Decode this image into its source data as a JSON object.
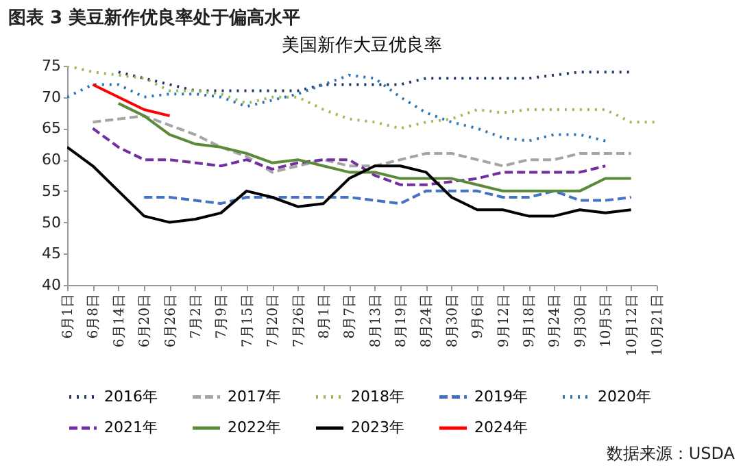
{
  "chart_data": {
    "type": "line",
    "title": "图表 3 美豆新作优良率处于偏高水平",
    "subtitle": "美国新作大豆优良率",
    "categories": [
      "6月1日",
      "6月8日",
      "6月14日",
      "6月20日",
      "6月26日",
      "7月2日",
      "7月9日",
      "7月15日",
      "7月20日",
      "7月26日",
      "8月1日",
      "8月7日",
      "8月13日",
      "8月19日",
      "8月24日",
      "8月30日",
      "9月6日",
      "9月12日",
      "9月18日",
      "9月24日",
      "9月30日",
      "10月5日",
      "10月12日",
      "10月21日"
    ],
    "series": [
      {
        "name": "2016年",
        "color": "#1f3864",
        "line_style": "dotted",
        "values": [
          null,
          null,
          74,
          73,
          72,
          71,
          71,
          71,
          71,
          71,
          72,
          72,
          72,
          72,
          73,
          73,
          73,
          73,
          73,
          73.5,
          74,
          74,
          74,
          null
        ]
      },
      {
        "name": "2017年",
        "color": "#a5a5a5",
        "line_style": "dashed",
        "values": [
          null,
          66,
          66.5,
          67,
          65.5,
          64,
          62,
          60.5,
          58,
          59,
          60,
          59,
          59,
          60,
          61,
          61,
          60,
          59,
          60,
          60,
          61,
          61,
          61,
          null
        ]
      },
      {
        "name": "2018年",
        "color": "#9bbb59",
        "line_style": "dotted",
        "values": [
          75,
          74,
          73.5,
          73,
          71,
          71,
          70.5,
          69,
          70,
          70,
          68,
          66.5,
          66,
          65,
          66,
          66.5,
          68,
          67.5,
          68,
          68,
          68,
          68,
          66,
          66
        ]
      },
      {
        "name": "2019年",
        "color": "#4472c4",
        "line_style": "dashed",
        "values": [
          null,
          null,
          null,
          54,
          54,
          53.5,
          53,
          54,
          54,
          54,
          54,
          54,
          53.5,
          53,
          55,
          55,
          55,
          54,
          54,
          55,
          53.5,
          53.5,
          54,
          null
        ]
      },
      {
        "name": "2020年",
        "color": "#2e75b6",
        "line_style": "dotted",
        "values": [
          70,
          72,
          72,
          70,
          70.5,
          70.5,
          70,
          68.5,
          69.5,
          70.5,
          72,
          73.5,
          73,
          70,
          67.5,
          66,
          65,
          63.5,
          63,
          64,
          64,
          63,
          null,
          null
        ]
      },
      {
        "name": "2021年",
        "color": "#7030a0",
        "line_style": "dashed",
        "values": [
          null,
          65,
          62,
          60,
          60,
          59.5,
          59,
          60,
          58.5,
          59.5,
          60,
          60,
          57.5,
          56,
          56,
          56.5,
          57,
          58,
          58,
          58,
          58,
          59,
          null,
          null
        ]
      },
      {
        "name": "2022年",
        "color": "#5a8a3a",
        "line_style": "solid",
        "values": [
          null,
          null,
          69,
          67,
          64,
          62.5,
          62,
          61,
          59.5,
          60,
          59,
          58,
          58,
          57,
          57,
          57,
          56,
          55,
          55,
          55,
          55,
          57,
          57,
          null
        ]
      },
      {
        "name": "2023年",
        "color": "#000000",
        "line_style": "solid",
        "values": [
          62,
          59,
          55,
          51,
          50,
          50.5,
          51.5,
          55,
          54,
          52.5,
          53,
          57,
          59,
          59,
          58,
          54,
          52,
          52,
          51,
          51,
          52,
          51.5,
          52,
          null
        ]
      },
      {
        "name": "2024年",
        "color": "#ff0000",
        "line_style": "solid",
        "values": [
          null,
          72,
          70,
          68,
          67,
          null,
          null,
          null,
          null,
          null,
          null,
          null,
          null,
          null,
          null,
          null,
          null,
          null,
          null,
          null,
          null,
          null,
          null,
          null
        ]
      }
    ],
    "ylim": [
      40,
      75
    ],
    "yticks": [
      40,
      45,
      50,
      55,
      60,
      65,
      70,
      75
    ],
    "grid": false,
    "legend": "bottom",
    "marker": "none",
    "annotations": [
      "数据来源：USDA"
    ]
  }
}
